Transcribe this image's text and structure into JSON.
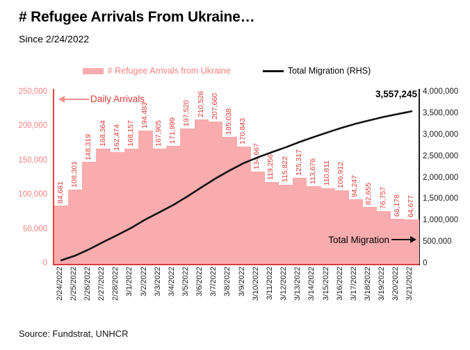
{
  "header": {
    "title": "# Refugee Arrivals From Ukraine…",
    "subtitle": "Since 2/24/2022"
  },
  "legend": {
    "bar_label": "# Refugee Arrivals from Ukraine",
    "line_label": "Total Migration (RHS)"
  },
  "annotations": {
    "daily_arrivals": "Daily Arrivals",
    "total_migration": "Total Migration",
    "final_total": "3,557,245"
  },
  "footer": {
    "source": "Source: Fundstrat, UNHCR"
  },
  "colors": {
    "bar_fill": "#f9acae",
    "bar_value_label": "#e23d3a",
    "left_axis_line": "#e8403c",
    "left_tick_text": "#f5817e",
    "right_axis_line": "#1a1a1a",
    "right_tick_text": "#1a1a1a",
    "trend_line": "#111111",
    "date_text": "#222222",
    "daily_arrows": "#f2908d"
  },
  "chart_data": {
    "type": "bar",
    "title": "# Refugee Arrivals From Ukraine… Since 2/24/2022",
    "grid": false,
    "legend_position": "top",
    "categories": [
      "2/24/2022",
      "2/25/2022",
      "2/26/2022",
      "2/27/2022",
      "2/28/2022",
      "3/1/2022",
      "3/2/2022",
      "3/3/2022",
      "3/4/2022",
      "3/5/2022",
      "3/6/2022",
      "3/7/2022",
      "3/8/2022",
      "3/9/2022",
      "3/10/2022",
      "3/11/2022",
      "3/12/2022",
      "3/13/2022",
      "3/14/2022",
      "3/15/2022",
      "3/16/2022",
      "3/17/2022",
      "3/18/2022",
      "3/19/2022",
      "3/20/2022",
      "3/21/2022"
    ],
    "series": [
      {
        "name": "# Refugee Arrivals from Ukraine",
        "type": "bar",
        "axis": "left",
        "values": [
          84681,
          108301,
          148319,
          168364,
          162474,
          168157,
          194483,
          167905,
          171999,
          197520,
          210526,
          207660,
          185038,
          170843,
          134667,
          119256,
          115822,
          125317,
          113676,
          110811,
          106912,
          94247,
          82655,
          76757,
          66178,
          64677
        ]
      },
      {
        "name": "Total Migration (RHS)",
        "type": "line",
        "axis": "right",
        "values": [
          84681,
          192982,
          341301,
          509665,
          672139,
          840296,
          1034779,
          1202684,
          1374683,
          1572203,
          1782729,
          1990389,
          2175427,
          2346270,
          2480937,
          2600193,
          2716015,
          2841332,
          2955008,
          3065819,
          3172731,
          3266978,
          3349633,
          3426390,
          3492568,
          3557245
        ]
      }
    ],
    "left_axis": {
      "label": "Daily Arrivals",
      "min": 0,
      "max": 250000,
      "tick_step": 50000
    },
    "right_axis": {
      "label": "Total Migration",
      "min": 0,
      "max": 4000000,
      "tick_step": 500000
    }
  }
}
